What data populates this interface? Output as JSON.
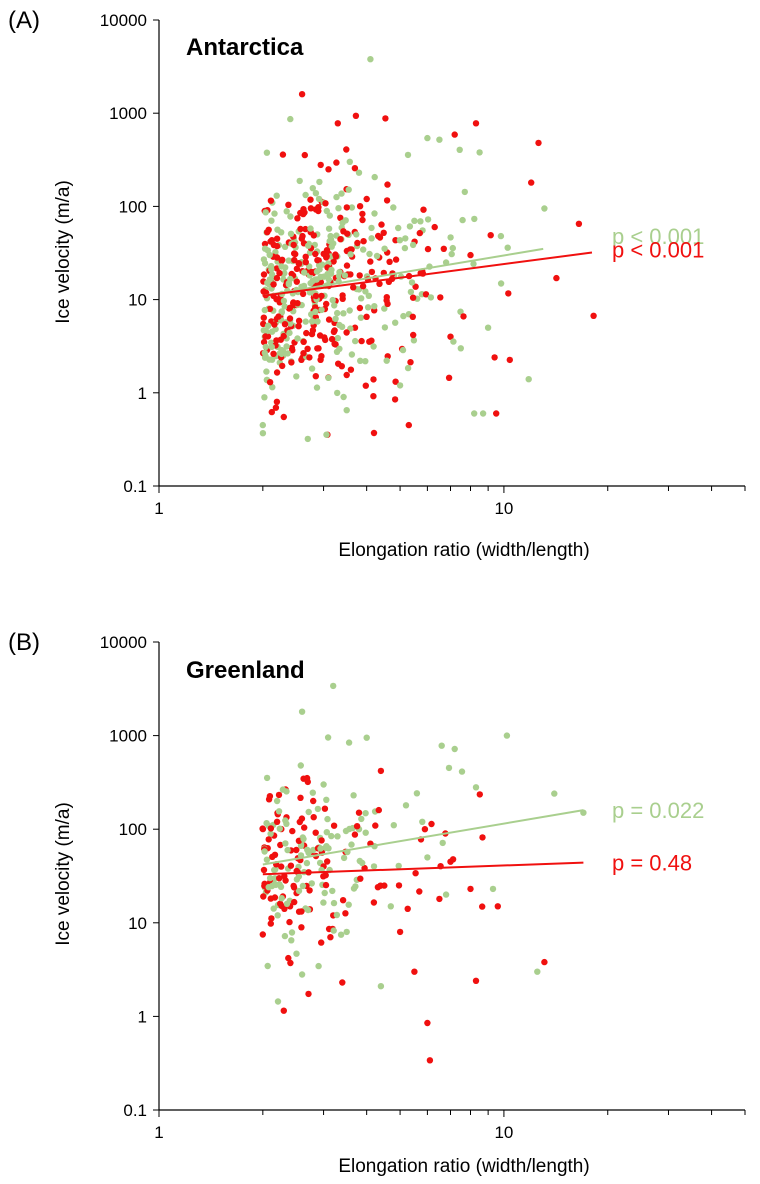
{
  "colors": {
    "green": "#a9cf8e",
    "red": "#f0100f",
    "axis": "#000000"
  },
  "chart_data": [
    {
      "type": "scatter",
      "panel_label": "(A)",
      "title": "Antarctica",
      "xlabel": "Elongation ratio (width/length)",
      "ylabel": "Ice velocity (m/a)",
      "x_scale": "log",
      "y_scale": "log",
      "xlim": [
        1,
        50
      ],
      "ylim": [
        0.1,
        10000
      ],
      "x_tick_labels": [
        "1",
        "10"
      ],
      "y_tick_labels": [
        "0.1",
        "1",
        "10",
        "100",
        "1000",
        "10000"
      ],
      "grid": false,
      "legend": "none",
      "annotations": [
        "p < 0.001",
        "p < 0.001"
      ],
      "series": [
        {
          "color": "#a9cf8e",
          "annotation": "p < 0.001",
          "trend": [
            [
              2.0,
              11
            ],
            [
              13.0,
              35
            ]
          ],
          "sample_points": [
            [
              4.1,
              3800
            ],
            [
              3.8,
              230
            ],
            [
              6.0,
              540
            ],
            [
              6.5,
              520
            ],
            [
              8.5,
              380
            ],
            [
              13.1,
              95
            ],
            [
              9.8,
              48
            ],
            [
              11.8,
              1.4
            ],
            [
              2.0,
              0.45
            ],
            [
              2.7,
              0.32
            ],
            [
              8.2,
              0.6
            ],
            [
              8.7,
              0.6
            ],
            [
              3.5,
              0.65
            ],
            [
              2.5,
              1.5
            ],
            [
              5.0,
              1.2
            ],
            [
              7.5,
              3.0
            ],
            [
              9.0,
              5.0
            ],
            [
              3.2,
              40
            ],
            [
              2.8,
              12
            ],
            [
              4.5,
              8
            ],
            [
              6.8,
              25
            ],
            [
              5.5,
              70
            ],
            [
              3.0,
              110
            ],
            [
              2.4,
              6
            ],
            [
              4.8,
              18
            ]
          ]
        },
        {
          "color": "#f0100f",
          "annotation": "p < 0.001",
          "trend": [
            [
              2.0,
              11
            ],
            [
              18.0,
              32
            ]
          ],
          "sample_points": [
            [
              2.6,
              1600
            ],
            [
              3.3,
              780
            ],
            [
              8.3,
              780
            ],
            [
              12.6,
              480
            ],
            [
              7.2,
              590
            ],
            [
              12.0,
              180
            ],
            [
              16.5,
              65
            ],
            [
              14.2,
              17
            ],
            [
              18.2,
              6.7
            ],
            [
              9.4,
              2.4
            ],
            [
              9.5,
              0.6
            ],
            [
              5.3,
              0.45
            ],
            [
              4.2,
              0.37
            ],
            [
              2.3,
              0.55
            ],
            [
              2.1,
              1.3
            ],
            [
              2.9,
              3.0
            ],
            [
              3.7,
              5.0
            ],
            [
              4.6,
              9.0
            ],
            [
              5.8,
              20
            ],
            [
              7.0,
              4.0
            ],
            [
              2.2,
              45
            ],
            [
              3.1,
              250
            ],
            [
              4.0,
              120
            ],
            [
              6.3,
              60
            ],
            [
              8.0,
              30
            ]
          ]
        }
      ]
    },
    {
      "type": "scatter",
      "panel_label": "(B)",
      "title": "Greenland",
      "xlabel": "Elongation ratio (width/length)",
      "ylabel": "Ice velocity (m/a)",
      "x_scale": "log",
      "y_scale": "log",
      "xlim": [
        1,
        50
      ],
      "ylim": [
        0.1,
        10000
      ],
      "x_tick_labels": [
        "1",
        "10"
      ],
      "y_tick_labels": [
        "0.1",
        "1",
        "10",
        "100",
        "1000",
        "10000"
      ],
      "grid": false,
      "legend": "none",
      "annotations": [
        "p = 0.022",
        "p = 0.48"
      ],
      "series": [
        {
          "color": "#a9cf8e",
          "annotation": "p = 0.022",
          "trend": [
            [
              2.0,
              42
            ],
            [
              17.0,
              160
            ]
          ],
          "sample_points": [
            [
              3.2,
              3400
            ],
            [
              2.6,
              1800
            ],
            [
              4.0,
              950
            ],
            [
              10.2,
              1000
            ],
            [
              6.6,
              780
            ],
            [
              7.2,
              720
            ],
            [
              14.0,
              240
            ],
            [
              8.3,
              280
            ],
            [
              12.5,
              3.0
            ],
            [
              2.6,
              2.8
            ],
            [
              4.4,
              2.1
            ],
            [
              6.8,
              20
            ],
            [
              9.3,
              23
            ],
            [
              3.8,
              100
            ],
            [
              5.2,
              180
            ],
            [
              2.8,
              60
            ],
            [
              2.2,
              200
            ],
            [
              4.7,
              15
            ],
            [
              3.5,
              8
            ],
            [
              6.0,
              50
            ],
            [
              2.1,
              30
            ],
            [
              17.0,
              150
            ],
            [
              5.8,
              120
            ],
            [
              3.0,
              300
            ],
            [
              4.2,
              40
            ]
          ]
        },
        {
          "color": "#f0100f",
          "annotation": "p = 0.48",
          "trend": [
            [
              2.0,
              33
            ],
            [
              17.0,
              44
            ]
          ],
          "sample_points": [
            [
              2.3,
              1.15
            ],
            [
              6.0,
              0.85
            ],
            [
              6.1,
              0.34
            ],
            [
              13.1,
              3.8
            ],
            [
              8.3,
              2.4
            ],
            [
              9.6,
              15
            ],
            [
              8.0,
              23
            ],
            [
              4.4,
              420
            ],
            [
              2.7,
              320
            ],
            [
              2.0,
              7.5
            ],
            [
              2.2,
              120
            ],
            [
              2.5,
              60
            ],
            [
              3.0,
              40
            ],
            [
              3.4,
              2.3
            ],
            [
              3.8,
              150
            ],
            [
              4.5,
              25
            ],
            [
              5.0,
              8
            ],
            [
              5.5,
              3.0
            ],
            [
              5.9,
              100
            ],
            [
              6.5,
              18
            ],
            [
              7.0,
              45
            ],
            [
              3.2,
              12
            ],
            [
              2.8,
              200
            ],
            [
              4.1,
              70
            ],
            [
              2.4,
              15
            ]
          ]
        }
      ]
    }
  ]
}
